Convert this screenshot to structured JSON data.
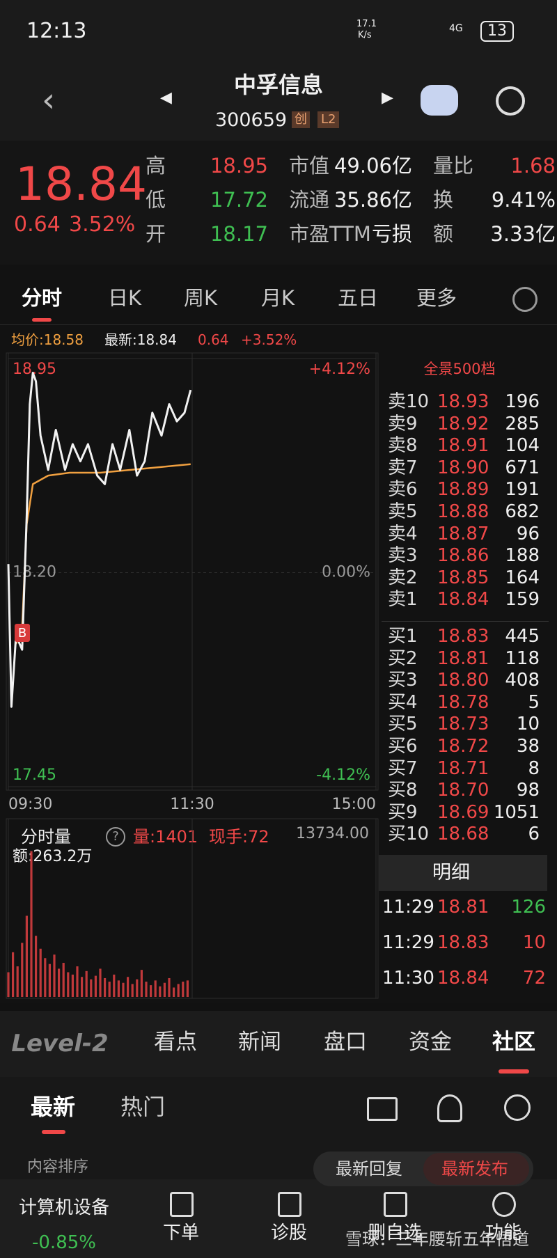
{
  "status_bar": {
    "time": "12:13",
    "speed": "17.1",
    "speed_unit": "K/s",
    "network": "4G",
    "battery": "13"
  },
  "header": {
    "name": "中孚信息",
    "code": "300659",
    "board": "创",
    "level": "L2"
  },
  "quote": {
    "price": "18.84",
    "change": "0.64",
    "change_pct": "3.52%",
    "col1": [
      {
        "label": "高",
        "value": "18.95"
      },
      {
        "label": "低",
        "value": "17.72"
      },
      {
        "label": "开",
        "value": "18.17"
      }
    ],
    "col2": [
      {
        "label": "市值",
        "value": "49.06亿"
      },
      {
        "label": "流通",
        "value": "35.86亿"
      },
      {
        "label": "市盈TTM",
        "value": "亏损"
      }
    ],
    "col3": [
      {
        "label": "量比",
        "value": "1.68"
      },
      {
        "label": "换",
        "value": "9.41%"
      },
      {
        "label": "额",
        "value": "3.33亿"
      }
    ]
  },
  "chart_tabs": [
    "分时",
    "日K",
    "周K",
    "月K",
    "五日",
    "更多"
  ],
  "info_line": {
    "avg": "均价:18.58",
    "latest": "最新:18.84",
    "change": "0.64",
    "change_pct": "+3.52%"
  },
  "chart_data": {
    "type": "line",
    "buy_marker": "B",
    "xlim": [
      0,
      240
    ],
    "xticks": [
      {
        "value": 0,
        "label": "09:30"
      },
      {
        "value": 120,
        "label": "11:30"
      },
      {
        "value": 240,
        "label": "15:00"
      }
    ],
    "ylim": [
      17.45,
      18.95
    ],
    "yticks": [
      17.45,
      {
        "value": 18.2,
        "label": "18.20"
      },
      18.95
    ],
    "y2lim": [
      -4.12,
      4.12
    ],
    "y2ticks": [
      {
        "value": -4.12,
        "label": "-4.12%"
      },
      {
        "value": 0,
        "label": "0.00%"
      },
      {
        "value": 4.12,
        "label": "+4.12%"
      }
    ],
    "grid": true,
    "price_line": {
      "color": "#f2f2f2",
      "x": [
        0,
        2,
        5,
        9,
        12,
        14,
        16,
        18,
        21,
        26,
        31,
        37,
        42,
        47,
        52,
        58,
        63,
        68,
        73,
        79,
        84,
        89,
        94,
        100,
        105,
        110,
        115,
        119
      ],
      "values": [
        18.23,
        17.73,
        17.98,
        17.93,
        18.4,
        18.79,
        18.9,
        18.87,
        18.68,
        18.56,
        18.7,
        18.56,
        18.65,
        18.59,
        18.65,
        18.54,
        18.51,
        18.65,
        18.56,
        18.7,
        18.54,
        18.59,
        18.76,
        18.68,
        18.79,
        18.73,
        18.76,
        18.84
      ]
    },
    "avg_line": {
      "color": "#f0a040",
      "x": [
        5,
        9,
        12,
        16,
        26,
        40,
        60,
        80,
        100,
        119
      ],
      "values": [
        17.95,
        18.01,
        18.37,
        18.51,
        18.54,
        18.55,
        18.55,
        18.56,
        18.57,
        18.58
      ]
    },
    "volume_title": "分时量",
    "volume_stat": "量:1401",
    "hand": "现手:72",
    "amount": "额:263.2万",
    "volume": {
      "color": "#c0393b",
      "ylim": [
        0,
        13734
      ],
      "yticks": [
        {
          "value": 13734,
          "label": "13734.00"
        }
      ],
      "x": [
        0,
        3,
        6,
        9,
        12,
        15,
        18,
        21,
        24,
        27,
        30,
        33,
        36,
        39,
        42,
        45,
        48,
        51,
        54,
        57,
        60,
        63,
        66,
        69,
        72,
        75,
        78,
        81,
        84,
        87,
        90,
        93,
        96,
        99,
        102,
        105,
        108,
        111,
        114,
        117
      ],
      "values": [
        2100,
        3800,
        2600,
        4600,
        6900,
        12400,
        5200,
        4100,
        3300,
        2800,
        3600,
        2400,
        2900,
        2100,
        1900,
        2600,
        1700,
        2200,
        1500,
        1800,
        2400,
        1600,
        1300,
        1900,
        1400,
        1200,
        1700,
        1100,
        1500,
        2300,
        1300,
        1000,
        1400,
        900,
        1200,
        1600,
        800,
        1100,
        1300,
        1401
      ]
    }
  },
  "order_book": {
    "title": "全景500档",
    "sell": [
      {
        "label": "卖10",
        "price": "18.93",
        "volume": "196"
      },
      {
        "label": "卖9",
        "price": "18.92",
        "volume": "285"
      },
      {
        "label": "卖8",
        "price": "18.91",
        "volume": "104"
      },
      {
        "label": "卖7",
        "price": "18.90",
        "volume": "671"
      },
      {
        "label": "卖6",
        "price": "18.89",
        "volume": "191"
      },
      {
        "label": "卖5",
        "price": "18.88",
        "volume": "682"
      },
      {
        "label": "卖4",
        "price": "18.87",
        "volume": "96"
      },
      {
        "label": "卖3",
        "price": "18.86",
        "volume": "188"
      },
      {
        "label": "卖2",
        "price": "18.85",
        "volume": "164"
      },
      {
        "label": "卖1",
        "price": "18.84",
        "volume": "159"
      }
    ],
    "buy": [
      {
        "label": "买1",
        "price": "18.83",
        "volume": "445"
      },
      {
        "label": "买2",
        "price": "18.81",
        "volume": "118"
      },
      {
        "label": "买3",
        "price": "18.80",
        "volume": "408"
      },
      {
        "label": "买4",
        "price": "18.78",
        "volume": "5"
      },
      {
        "label": "买5",
        "price": "18.73",
        "volume": "10"
      },
      {
        "label": "买6",
        "price": "18.72",
        "volume": "38"
      },
      {
        "label": "买7",
        "price": "18.71",
        "volume": "8"
      },
      {
        "label": "买8",
        "price": "18.70",
        "volume": "98"
      },
      {
        "label": "买9",
        "price": "18.69",
        "volume": "1051"
      },
      {
        "label": "买10",
        "price": "18.68",
        "volume": "6"
      }
    ]
  },
  "detail": {
    "title": "明细",
    "rows": [
      [
        "11:29",
        "18.81",
        "126"
      ],
      [
        "11:29",
        "18.83",
        "10"
      ],
      [
        "11:30",
        "18.84",
        "72"
      ]
    ]
  },
  "nav_tabs": [
    "Level-2",
    "看点",
    "新闻",
    "盘口",
    "资金",
    "社区"
  ],
  "feed_tabs": [
    "最新",
    "热门"
  ],
  "sort": {
    "label": "内容排序",
    "options": [
      "最新回复",
      "最新发布"
    ]
  },
  "bottom_bar": {
    "sector": "计算机设备",
    "sector_change": "-0.85%",
    "items": [
      "下单",
      "诊股",
      "删自选",
      "功能"
    ]
  },
  "watermark": "雪球：三年腰斩五年悟道"
}
